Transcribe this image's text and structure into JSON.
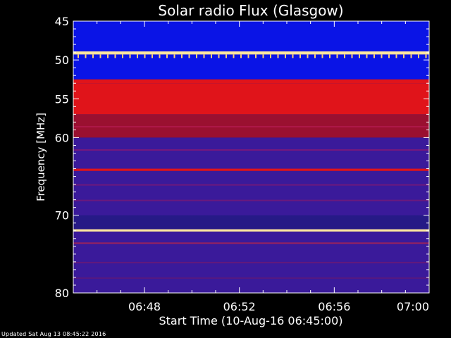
{
  "chart_data": {
    "type": "heatmap",
    "title": "Solar radio Flux (Glasgow)",
    "xlabel": "Start Time (10-Aug-16 06:45:00)",
    "ylabel": "Frequency [MHz]",
    "x_range": [
      "06:45",
      "07:00"
    ],
    "y_range": [
      45,
      80
    ],
    "y_inverted": true,
    "x_ticks": [
      "06:48",
      "06:52",
      "06:56",
      "07:00"
    ],
    "y_ticks": [
      45,
      50,
      55,
      60,
      70,
      80
    ],
    "colormap": "blue-purple-red-yellow-white",
    "bands": [
      {
        "mhz": [
          45.0,
          48.9
        ],
        "level": "low"
      },
      {
        "mhz": [
          48.9,
          49.3
        ],
        "level": "saturated"
      },
      {
        "mhz": [
          49.3,
          52.5
        ],
        "level": "low"
      },
      {
        "mhz": [
          52.5,
          53.0
        ],
        "level": "high"
      },
      {
        "mhz": [
          53.0,
          57.0
        ],
        "level": "high"
      },
      {
        "mhz": [
          57.0,
          60.0
        ],
        "level": "medium-high"
      },
      {
        "mhz": [
          60.0,
          64.0
        ],
        "level": "medium"
      },
      {
        "mhz": [
          64.0,
          64.3
        ],
        "level": "high"
      },
      {
        "mhz": [
          64.3,
          70.0
        ],
        "level": "medium"
      },
      {
        "mhz": [
          71.8,
          72.1
        ],
        "level": "saturated"
      },
      {
        "mhz": [
          72.1,
          80.0
        ],
        "level": "medium"
      }
    ]
  },
  "footer": "Updated Sat Aug 13 08:45:22 2016"
}
